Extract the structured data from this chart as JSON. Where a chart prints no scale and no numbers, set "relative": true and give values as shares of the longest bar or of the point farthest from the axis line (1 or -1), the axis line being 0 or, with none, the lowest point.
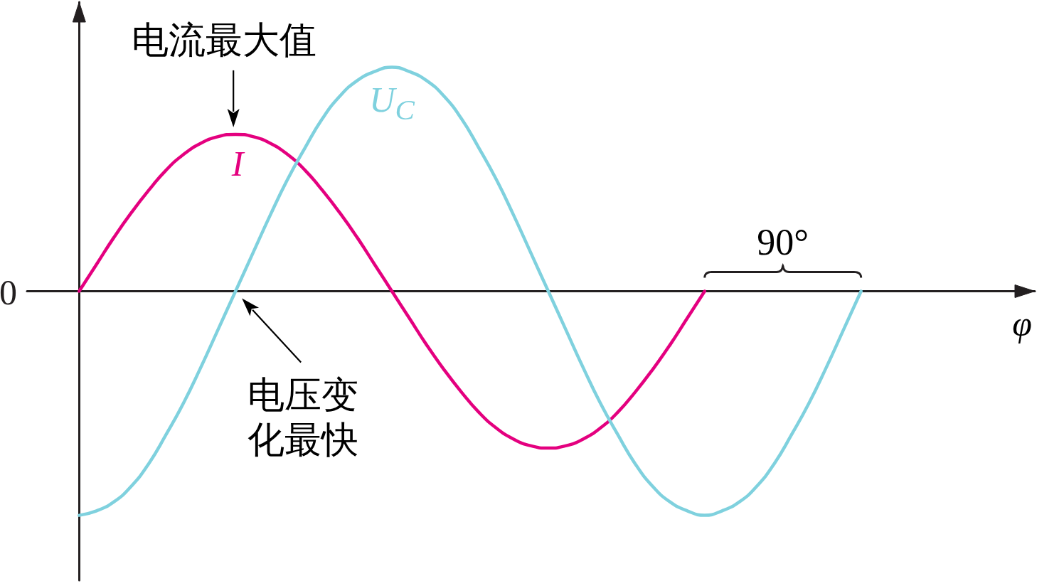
{
  "chart_data": {
    "type": "line",
    "xlabel": "φ",
    "relative": true,
    "legend": false,
    "grid": false,
    "categories": [
      null,
      null,
      null,
      null,
      null,
      null,
      null,
      null,
      null,
      null,
      null,
      null,
      null,
      null,
      null,
      null,
      null,
      null,
      null,
      null,
      null,
      null,
      null,
      null,
      null,
      null,
      null,
      null,
      null,
      null,
      null,
      null,
      null,
      null,
      null,
      null,
      null,
      null,
      null,
      null,
      null,
      null,
      null,
      null,
      null,
      null,
      null,
      null,
      null,
      null,
      null,
      null,
      null,
      null,
      null,
      null,
      null,
      null,
      null
    ],
    "series": [
      {
        "name": "I",
        "color": "#e4007f",
        "values": [
          null,
          null,
          null,
          0,
          0.12,
          0.24,
          0.35,
          0.45,
          0.54,
          0.61,
          0.66,
          0.69,
          0.7,
          0.69,
          0.66,
          0.61,
          0.54,
          0.45,
          0.35,
          0.24,
          0.12,
          0,
          -0.12,
          -0.24,
          -0.35,
          -0.45,
          -0.54,
          -0.61,
          -0.66,
          -0.69,
          -0.7,
          -0.69,
          -0.66,
          -0.61,
          -0.54,
          -0.45,
          -0.35,
          -0.24,
          -0.12,
          0,
          null,
          null,
          null,
          null,
          null,
          null,
          null,
          null,
          null,
          null,
          null,
          null,
          null,
          null,
          null,
          null,
          null,
          null,
          null
        ]
      },
      {
        "name": "U$_{C}$",
        "color": "#7fd1de",
        "values": [
          null,
          null,
          null,
          -1,
          -0.98,
          -0.94,
          -0.87,
          -0.77,
          -0.64,
          -0.5,
          -0.34,
          -0.17,
          0,
          0.17,
          0.34,
          0.5,
          0.64,
          0.77,
          0.87,
          0.94,
          0.98,
          1,
          0.98,
          0.94,
          0.87,
          0.77,
          0.64,
          0.5,
          0.34,
          0.17,
          0,
          -0.17,
          -0.34,
          -0.5,
          -0.64,
          -0.77,
          -0.87,
          -0.94,
          -0.98,
          -1,
          -0.98,
          -0.94,
          -0.87,
          -0.77,
          -0.64,
          -0.5,
          -0.34,
          -0.17,
          0,
          null,
          null,
          null,
          null,
          null,
          null,
          null,
          null,
          null,
          null
        ]
      }
    ],
    "annotations": [
      "0",
      "电流最大值",
      "电压变化最快",
      "90°"
    ]
  }
}
